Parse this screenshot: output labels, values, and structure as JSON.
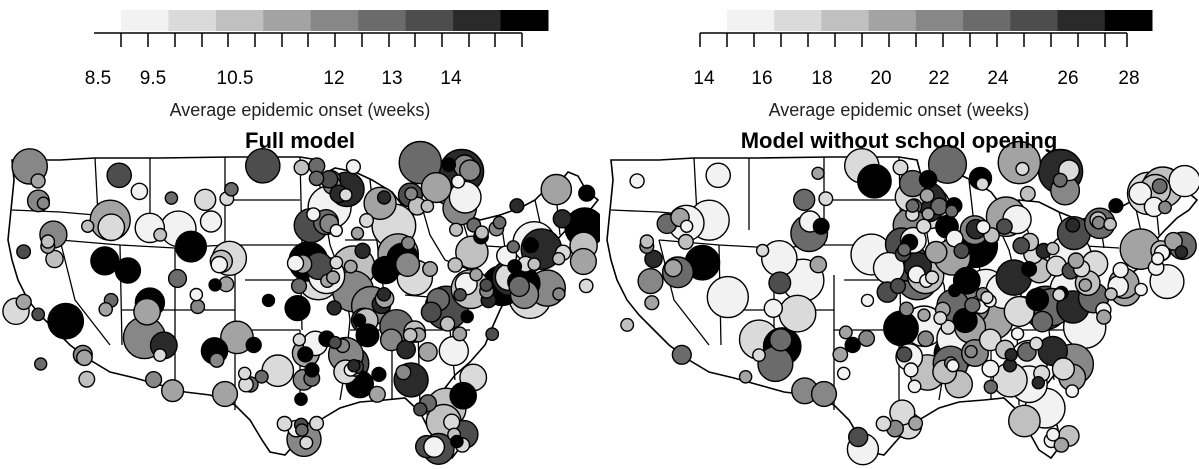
{
  "panels": [
    {
      "id": "left",
      "title": "Full model",
      "legend_label": "Average epidemic onset (weeks)",
      "legend_tick_labels": [
        "8.5",
        "9.5",
        "10.5",
        "12",
        "13",
        "14"
      ],
      "legend_colors": [
        "#f2f2f2",
        "#dadada",
        "#c0c0c0",
        "#a3a3a3",
        "#878787",
        "#6b6b6b",
        "#4d4d4d",
        "#2a2a2a",
        "#000000"
      ]
    },
    {
      "id": "right",
      "title": "Model without school opening",
      "legend_label": "Average epidemic onset (weeks)",
      "legend_tick_labels": [
        "14",
        "16",
        "18",
        "20",
        "22",
        "24",
        "26",
        "28"
      ],
      "legend_colors": [
        "#f2f2f2",
        "#dadada",
        "#c0c0c0",
        "#a3a3a3",
        "#878787",
        "#6b6b6b",
        "#4d4d4d",
        "#2a2a2a",
        "#000000"
      ]
    }
  ]
}
